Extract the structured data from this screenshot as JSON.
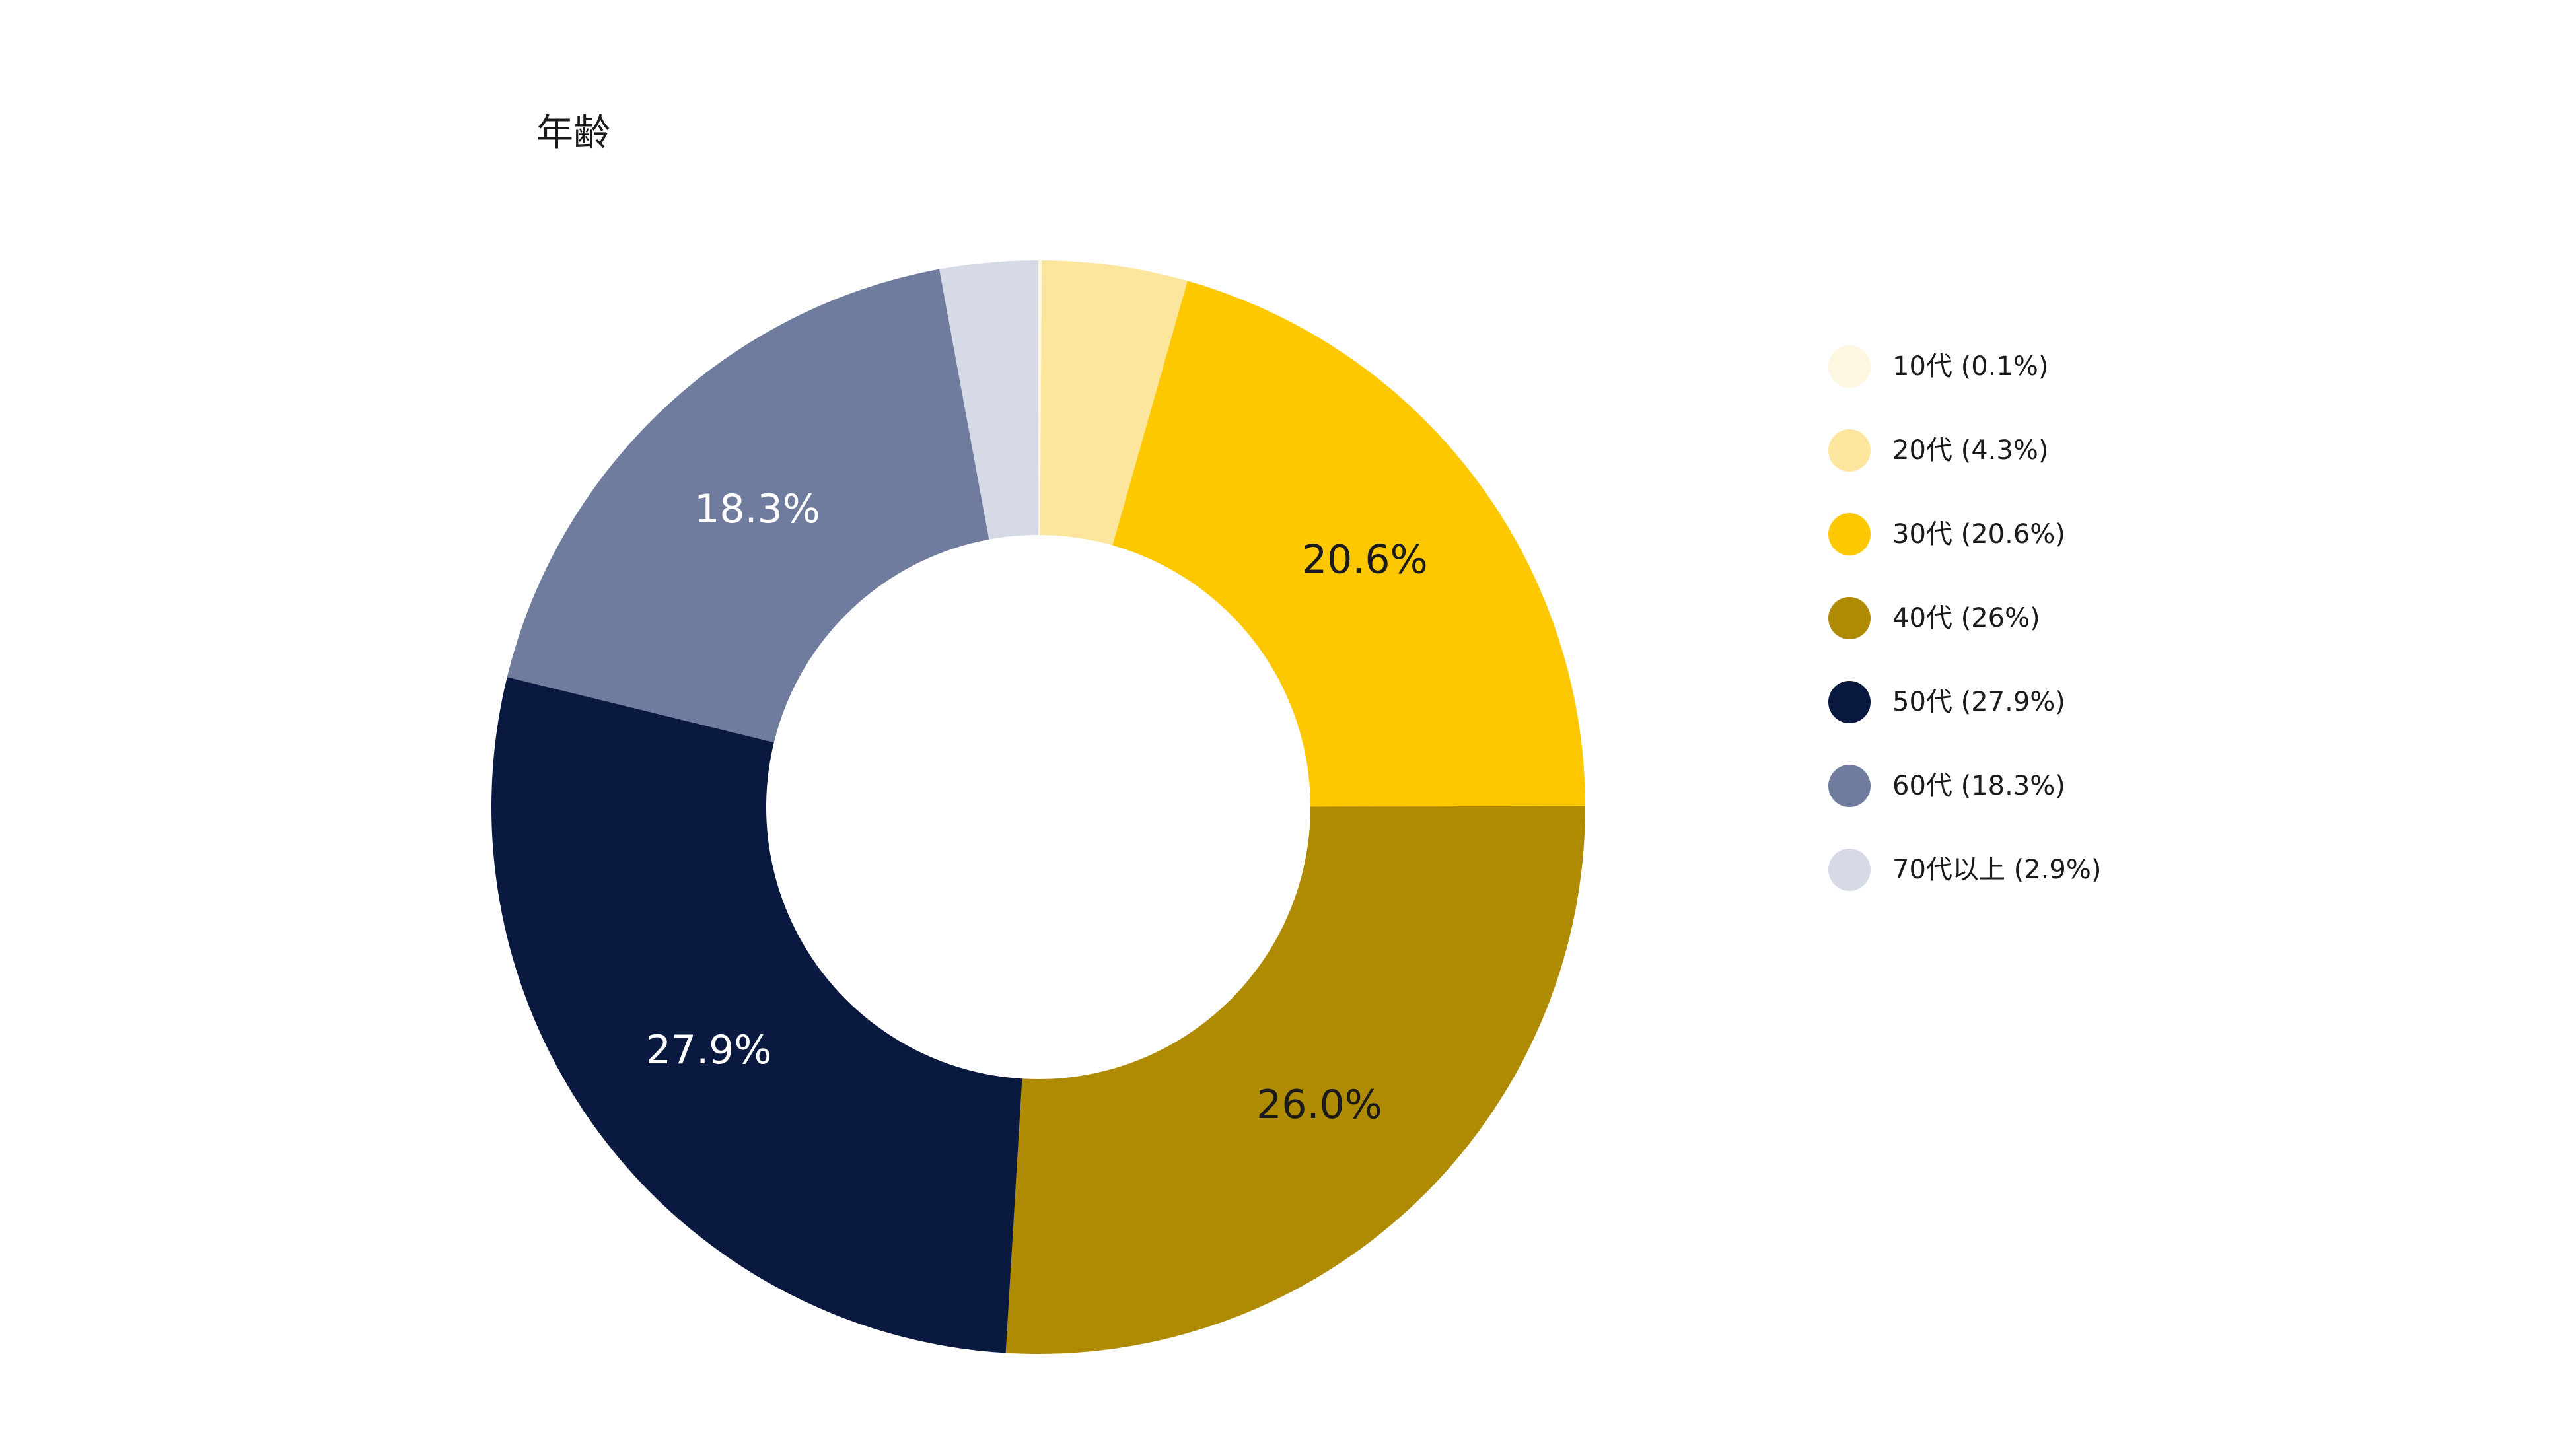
{
  "chart_data": {
    "type": "pie",
    "style": "donut",
    "title": "年齢",
    "legend_position": "right",
    "slices": [
      {
        "label": "10代",
        "value": 0.1,
        "legend_text": "10代 (0.1%)",
        "data_label": "",
        "color": "#FDF6E1",
        "label_color": "#1a1a1a"
      },
      {
        "label": "20代",
        "value": 4.3,
        "legend_text": "20代 (4.3%)",
        "data_label": "",
        "color": "#FCE69E",
        "label_color": "#1a1a1a"
      },
      {
        "label": "30代",
        "value": 20.6,
        "legend_text": "30代 (20.6%)",
        "data_label": "20.6%",
        "color": "#FEC800",
        "label_color": "#1a1a1a"
      },
      {
        "label": "40代",
        "value": 26.0,
        "legend_text": "40代 (26%)",
        "data_label": "26.0%",
        "color": "#AF8A03",
        "label_color": "#1a1a1a"
      },
      {
        "label": "50代",
        "value": 27.9,
        "legend_text": "50代 (27.9%)",
        "data_label": "27.9%",
        "color": "#0A1940",
        "label_color": "#ffffff"
      },
      {
        "label": "60代",
        "value": 18.3,
        "legend_text": "60代 (18.3%)",
        "data_label": "18.3%",
        "color": "#707C9E",
        "label_color": "#ffffff"
      },
      {
        "label": "70代以上",
        "value": 2.9,
        "legend_text": "70代以上 (2.9%)",
        "data_label": "",
        "color": "#D6DAE6",
        "label_color": "#1a1a1a"
      }
    ]
  }
}
